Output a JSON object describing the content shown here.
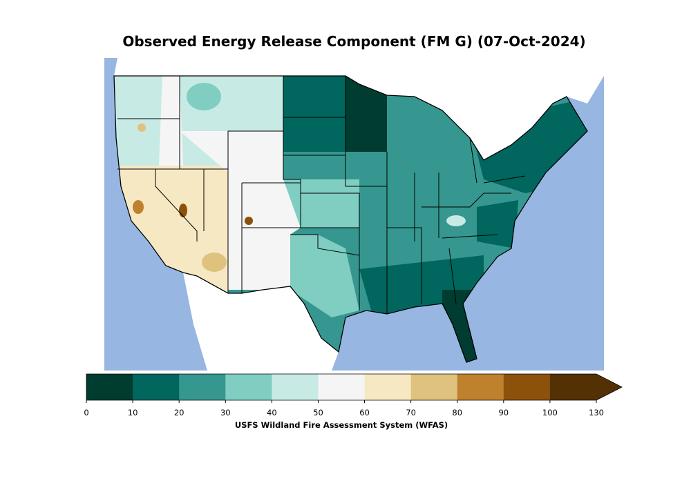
{
  "title": "Observed Energy Release Component (FM G) (07-Oct-2024)",
  "colorbar": {
    "label": "USFS Wildland Fire Assessment System (WFAS)",
    "ticks": [
      "0",
      "10",
      "20",
      "30",
      "40",
      "50",
      "60",
      "70",
      "80",
      "90",
      "100",
      "130"
    ],
    "colors": [
      "#003c30",
      "#01665e",
      "#35978f",
      "#80cdc1",
      "#c7eae5",
      "#f5f5f5",
      "#f6e8c3",
      "#dfc27d",
      "#bf812d",
      "#8c510a",
      "#543005"
    ],
    "extend": "max"
  },
  "map": {
    "ocean_color": "#98b6e2",
    "land_outside_color": "#ffffff"
  }
}
